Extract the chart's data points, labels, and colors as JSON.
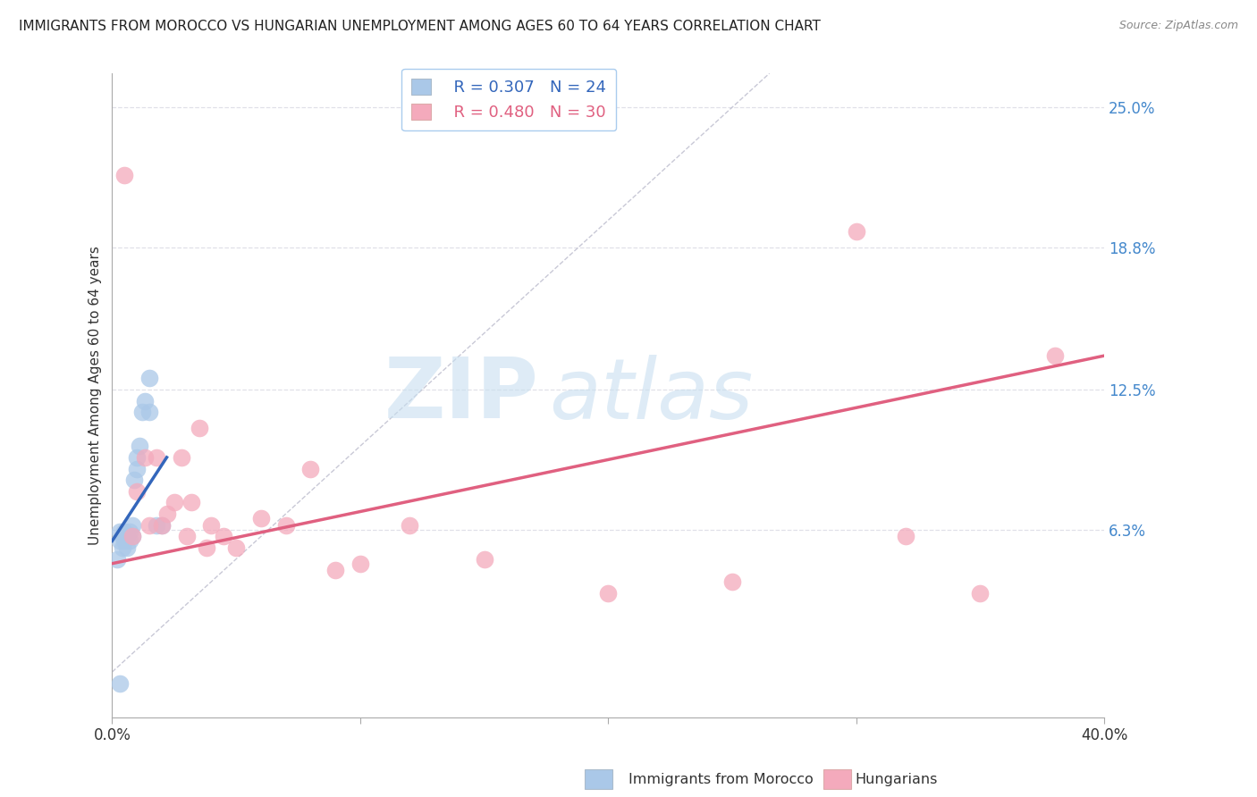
{
  "title": "IMMIGRANTS FROM MOROCCO VS HUNGARIAN UNEMPLOYMENT AMONG AGES 60 TO 64 YEARS CORRELATION CHART",
  "source": "Source: ZipAtlas.com",
  "ylabel": "Unemployment Among Ages 60 to 64 years",
  "xlim": [
    0.0,
    0.4
  ],
  "ylim": [
    -0.02,
    0.265
  ],
  "yticks": [
    0.063,
    0.125,
    0.188,
    0.25
  ],
  "ytick_labels": [
    "6.3%",
    "12.5%",
    "18.8%",
    "25.0%"
  ],
  "xticks": [
    0.0,
    0.1,
    0.2,
    0.3,
    0.4
  ],
  "xtick_labels": [
    "0.0%",
    "",
    "",
    "",
    "40.0%"
  ],
  "legend_blue_r": "R = 0.307",
  "legend_blue_n": "N = 24",
  "legend_pink_r": "R = 0.480",
  "legend_pink_n": "N = 30",
  "blue_color": "#aac8e8",
  "blue_line_color": "#3366bb",
  "pink_color": "#f4aabc",
  "pink_line_color": "#e06080",
  "watermark_zip": "ZIP",
  "watermark_atlas": "atlas",
  "ref_line_color": "#bbbbcc",
  "background_color": "#ffffff",
  "grid_color": "#e0e0e8",
  "title_fontsize": 11,
  "axis_fontsize": 11,
  "tick_fontsize": 12,
  "ytick_color": "#4488cc",
  "blue_scatter_x": [
    0.002,
    0.003,
    0.003,
    0.004,
    0.004,
    0.005,
    0.005,
    0.006,
    0.006,
    0.007,
    0.007,
    0.008,
    0.008,
    0.009,
    0.01,
    0.01,
    0.011,
    0.012,
    0.013,
    0.015,
    0.015,
    0.018,
    0.02,
    0.003
  ],
  "blue_scatter_y": [
    0.05,
    0.062,
    0.058,
    0.06,
    0.055,
    0.058,
    0.062,
    0.06,
    0.055,
    0.058,
    0.062,
    0.06,
    0.065,
    0.085,
    0.09,
    0.095,
    0.1,
    0.115,
    0.12,
    0.115,
    0.13,
    0.065,
    0.065,
    -0.005
  ],
  "pink_scatter_x": [
    0.005,
    0.008,
    0.01,
    0.013,
    0.015,
    0.018,
    0.02,
    0.022,
    0.025,
    0.028,
    0.03,
    0.032,
    0.035,
    0.038,
    0.04,
    0.045,
    0.05,
    0.06,
    0.07,
    0.08,
    0.09,
    0.1,
    0.12,
    0.15,
    0.2,
    0.25,
    0.3,
    0.32,
    0.35,
    0.38
  ],
  "pink_scatter_y": [
    0.22,
    0.06,
    0.08,
    0.095,
    0.065,
    0.095,
    0.065,
    0.07,
    0.075,
    0.095,
    0.06,
    0.075,
    0.108,
    0.055,
    0.065,
    0.06,
    0.055,
    0.068,
    0.065,
    0.09,
    0.045,
    0.048,
    0.065,
    0.05,
    0.035,
    0.04,
    0.195,
    0.06,
    0.035,
    0.14
  ],
  "blue_line_x": [
    0.0,
    0.022
  ],
  "blue_line_y": [
    0.058,
    0.095
  ],
  "pink_line_x": [
    0.0,
    0.4
  ],
  "pink_line_y": [
    0.048,
    0.14
  ],
  "ref_line_x": [
    0.0,
    0.265
  ],
  "ref_line_y": [
    0.0,
    0.265
  ]
}
